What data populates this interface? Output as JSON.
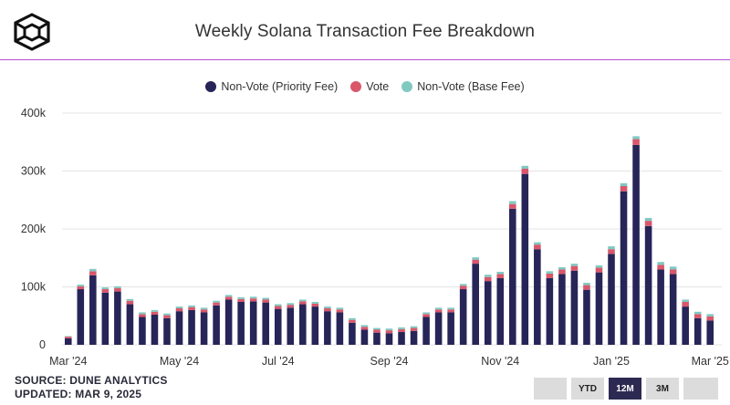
{
  "title": "Weekly Solana Transaction Fee Breakdown",
  "source_line": "SOURCE: DUNE ANALYTICS",
  "updated_line": "UPDATED: MAR 9, 2025",
  "colors": {
    "priority": "#272458",
    "vote": "#d9566b",
    "base": "#7fc9c1",
    "gridline": "#e4e4e4",
    "title_rule": "#b44fd6"
  },
  "icons": {
    "logo": "cube-logo-icon"
  },
  "range_buttons": [
    {
      "label": "",
      "active": false
    },
    {
      "label": "YTD",
      "active": false
    },
    {
      "label": "12M",
      "active": true
    },
    {
      "label": "3M",
      "active": false
    },
    {
      "label": "",
      "active": false
    }
  ],
  "chart_data": {
    "type": "bar",
    "stacked": true,
    "title": "Weekly Solana Transaction Fee Breakdown",
    "xlabel": "",
    "ylabel": "",
    "ylim": [
      0,
      400000
    ],
    "yticks": [
      0,
      100000,
      200000,
      300000,
      400000
    ],
    "ytick_labels": [
      "0",
      "100k",
      "200k",
      "300k",
      "400k"
    ],
    "xtick_labels": [
      {
        "label": "Mar '24",
        "index": 0
      },
      {
        "label": "May '24",
        "index": 9
      },
      {
        "label": "Jul '24",
        "index": 17
      },
      {
        "label": "Sep '24",
        "index": 26
      },
      {
        "label": "Nov '24",
        "index": 35
      },
      {
        "label": "Jan '25",
        "index": 44
      },
      {
        "label": "Mar '25",
        "index": 52
      }
    ],
    "legend": [
      "Non-Vote (Priority Fee)",
      "Vote",
      "Non-Vote (Base Fee)"
    ],
    "legend_position": "top-center",
    "categories": [
      "2024-03-04",
      "2024-03-11",
      "2024-03-18",
      "2024-03-25",
      "2024-04-01",
      "2024-04-08",
      "2024-04-15",
      "2024-04-22",
      "2024-04-29",
      "2024-05-06",
      "2024-05-13",
      "2024-05-20",
      "2024-05-27",
      "2024-06-03",
      "2024-06-10",
      "2024-06-17",
      "2024-06-24",
      "2024-07-01",
      "2024-07-08",
      "2024-07-15",
      "2024-07-22",
      "2024-07-29",
      "2024-08-05",
      "2024-08-12",
      "2024-08-19",
      "2024-08-26",
      "2024-09-02",
      "2024-09-09",
      "2024-09-16",
      "2024-09-23",
      "2024-09-30",
      "2024-10-07",
      "2024-10-14",
      "2024-10-21",
      "2024-10-28",
      "2024-11-04",
      "2024-11-11",
      "2024-11-18",
      "2024-11-25",
      "2024-12-02",
      "2024-12-09",
      "2024-12-16",
      "2024-12-23",
      "2024-12-30",
      "2025-01-06",
      "2025-01-13",
      "2025-01-20",
      "2025-01-27",
      "2025-02-03",
      "2025-02-10",
      "2025-02-17",
      "2025-02-24",
      "2025-03-03"
    ],
    "series": [
      {
        "name": "Non-Vote (Priority Fee)",
        "values": [
          11000,
          96000,
          120000,
          90000,
          92000,
          70000,
          48000,
          52000,
          46000,
          58000,
          60000,
          56000,
          68000,
          78000,
          74000,
          75000,
          73000,
          62000,
          64000,
          70000,
          66000,
          58000,
          56000,
          38000,
          26000,
          21000,
          20000,
          22000,
          24000,
          48000,
          56000,
          56000,
          96000,
          140000,
          110000,
          115000,
          235000,
          295000,
          165000,
          115000,
          122000,
          128000,
          95000,
          125000,
          157000,
          265000,
          345000,
          205000,
          130000,
          122000,
          66000,
          46000,
          42000
        ]
      },
      {
        "name": "Vote",
        "values": [
          3000,
          5000,
          7000,
          6000,
          6000,
          6000,
          5000,
          5000,
          5000,
          5000,
          5000,
          5000,
          5000,
          5000,
          5000,
          5000,
          5000,
          5000,
          5000,
          5000,
          5000,
          5000,
          5000,
          5000,
          5000,
          5000,
          5000,
          5000,
          5000,
          5000,
          5000,
          5000,
          6000,
          7000,
          7000,
          7000,
          8000,
          9000,
          8000,
          8000,
          8000,
          8000,
          8000,
          8000,
          8000,
          9000,
          10000,
          9000,
          8000,
          8000,
          8000,
          7000,
          7000
        ]
      },
      {
        "name": "Non-Vote (Base Fee)",
        "values": [
          1000,
          3000,
          4000,
          3000,
          3000,
          3000,
          3000,
          3000,
          3000,
          3000,
          3000,
          3000,
          3000,
          3000,
          3000,
          3000,
          3000,
          3000,
          3000,
          3000,
          3000,
          3000,
          3000,
          3000,
          3000,
          3000,
          3000,
          3000,
          3000,
          3000,
          3000,
          3000,
          3000,
          4000,
          4000,
          4000,
          5000,
          5000,
          4000,
          4000,
          4000,
          4000,
          4000,
          4000,
          5000,
          5000,
          5000,
          5000,
          5000,
          5000,
          4000,
          4000,
          4000
        ]
      }
    ]
  }
}
